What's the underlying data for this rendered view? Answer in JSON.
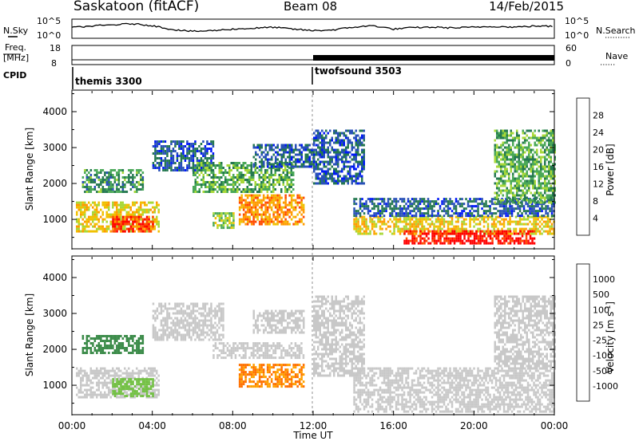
{
  "header": {
    "title": "Saskatoon (fitACF)",
    "beam": "Beam 08",
    "date": "14/Feb/2015"
  },
  "noise_panel": {
    "left_label": "N.Sky",
    "right_label": "N.Search",
    "left_ticks": [
      "10^5",
      "10^0"
    ],
    "right_ticks": [
      "10^5",
      "10^0"
    ]
  },
  "freq_panel": {
    "left_label_line1": "Freq.",
    "left_label_line2": "[MHz]",
    "right_label": "Nave",
    "left_ticks": [
      "18",
      "8"
    ],
    "right_ticks": [
      "60",
      "0"
    ]
  },
  "cpid": {
    "label": "CPID",
    "modes": [
      {
        "name": "themis 3300",
        "start_hour": 0
      },
      {
        "name": "twofsound 3503",
        "start_hour": 12
      }
    ]
  },
  "x_axis": {
    "label": "Time UT",
    "ticks": [
      "00:00",
      "04:00",
      "08:00",
      "12:00",
      "16:00",
      "20:00",
      "00:00"
    ],
    "range_hours": [
      0,
      24
    ]
  },
  "power_colorbar": {
    "label": "Power [dB]",
    "ticks": [
      "28",
      "24",
      "20",
      "16",
      "12",
      "8",
      "4"
    ],
    "colors": [
      "#ff0000",
      "#ff4a00",
      "#ff9a00",
      "#f0c000",
      "#a8d838",
      "#4aa858",
      "#247850",
      "#2850b8",
      "#0018f8"
    ]
  },
  "velocity_colorbar": {
    "label": "Velocity [m s",
    "label_sup": "-1",
    "label_end": "]",
    "ticks": [
      "1000",
      "500",
      "100",
      "25",
      "-25",
      "-100",
      "-500",
      "-1000"
    ],
    "colors": [
      "#2030a0",
      "#3458b0",
      "#3a8a48",
      "#70c040",
      "#c8c8c8",
      "#c8c8c8",
      "#ffa000",
      "#ff7000",
      "#ff3000",
      "#ff0000"
    ]
  },
  "chart_data": [
    {
      "type": "line",
      "title": "N.Sky / N.Search",
      "x_range": [
        0,
        24
      ],
      "series": [
        {
          "name": "N.Sky",
          "x": [
            0,
            1,
            2,
            3,
            4,
            5,
            6,
            7,
            8,
            9,
            10,
            11,
            12,
            13,
            14,
            15,
            16,
            17,
            18,
            19,
            20,
            21,
            22,
            23,
            24
          ],
          "values": [
            2.8,
            3.2,
            3.5,
            3.8,
            3.3,
            2.3,
            1.8,
            2.0,
            2.4,
            2.6,
            2.9,
            2.4,
            2.0,
            2.2,
            2.9,
            3.3,
            2.4,
            2.8,
            2.9,
            2.7,
            2.9,
            3.1,
            2.9,
            3.2,
            3.1
          ]
        }
      ]
    },
    {
      "type": "line",
      "title": "Freq. / Nave",
      "x_range": [
        0,
        24
      ],
      "series": [
        {
          "name": "Freq.",
          "x": [
            0,
            12,
            24
          ],
          "values": [
            10.5,
            10.5,
            10.5
          ]
        },
        {
          "name": "Nave",
          "x": [
            0,
            12,
            12,
            24
          ],
          "values": [
            15,
            15,
            30,
            30
          ]
        }
      ]
    },
    {
      "type": "heatmap",
      "title": "Power [dB]",
      "xlabel": "Time UT",
      "ylabel": "Slant Range [km]",
      "x_range": [
        0,
        24
      ],
      "ylim": [
        180,
        4600
      ],
      "y_ticks": [
        1000,
        2000,
        3000,
        4000
      ],
      "color_scale": [
        0,
        30
      ],
      "regions": [
        {
          "t": [
            0.2,
            4.3
          ],
          "r": [
            650,
            1500
          ],
          "value": 18
        },
        {
          "t": [
            2.0,
            4.0
          ],
          "r": [
            700,
            1100
          ],
          "value": 26
        },
        {
          "t": [
            0.5,
            3.5
          ],
          "r": [
            1750,
            2400
          ],
          "value": 10
        },
        {
          "t": [
            4.0,
            7.0
          ],
          "r": [
            2400,
            3200
          ],
          "value": 6
        },
        {
          "t": [
            7.0,
            8.0
          ],
          "r": [
            800,
            1200
          ],
          "value": 14
        },
        {
          "t": [
            8.3,
            11.5
          ],
          "r": [
            850,
            1700
          ],
          "value": 22
        },
        {
          "t": [
            6.0,
            11.0
          ],
          "r": [
            1800,
            2600
          ],
          "value": 12
        },
        {
          "t": [
            9.0,
            12.0
          ],
          "r": [
            2500,
            3100
          ],
          "value": 6
        },
        {
          "t": [
            12.0,
            14.5
          ],
          "r": [
            2000,
            3500
          ],
          "value": 6
        },
        {
          "t": [
            14.0,
            24.0
          ],
          "r": [
            600,
            1100
          ],
          "value": 18
        },
        {
          "t": [
            16.5,
            23.0
          ],
          "r": [
            350,
            700
          ],
          "value": 28
        },
        {
          "t": [
            14.0,
            24.0
          ],
          "r": [
            1100,
            1600
          ],
          "value": 6
        },
        {
          "t": [
            21.0,
            24.0
          ],
          "r": [
            1500,
            3500
          ],
          "value": 12
        }
      ]
    },
    {
      "type": "heatmap",
      "title": "Velocity [m s-1]",
      "xlabel": "Time UT",
      "ylabel": "Slant Range [km]",
      "x_range": [
        0,
        24
      ],
      "ylim": [
        180,
        4600
      ],
      "y_ticks": [
        1000,
        2000,
        3000,
        4000
      ],
      "color_scale": [
        -1000,
        1000
      ],
      "regions": [
        {
          "t": [
            0.2,
            4.3
          ],
          "r": [
            650,
            1500
          ],
          "value": 0
        },
        {
          "t": [
            2.0,
            4.0
          ],
          "r": [
            700,
            1200
          ],
          "value": 60
        },
        {
          "t": [
            0.5,
            3.5
          ],
          "r": [
            1900,
            2400
          ],
          "value": 150
        },
        {
          "t": [
            4.0,
            7.5
          ],
          "r": [
            2300,
            3300
          ],
          "value": 0
        },
        {
          "t": [
            8.3,
            11.5
          ],
          "r": [
            1000,
            1600
          ],
          "value": -100
        },
        {
          "t": [
            7.0,
            11.5
          ],
          "r": [
            1800,
            2200
          ],
          "value": 0
        },
        {
          "t": [
            9.0,
            11.5
          ],
          "r": [
            2500,
            3100
          ],
          "value": 0
        },
        {
          "t": [
            12.0,
            14.5
          ],
          "r": [
            1300,
            3500
          ],
          "value": 0
        },
        {
          "t": [
            14.0,
            24.0
          ],
          "r": [
            300,
            1500
          ],
          "value": 0
        },
        {
          "t": [
            21.0,
            24.0
          ],
          "r": [
            1500,
            3500
          ],
          "value": 0
        }
      ]
    }
  ]
}
